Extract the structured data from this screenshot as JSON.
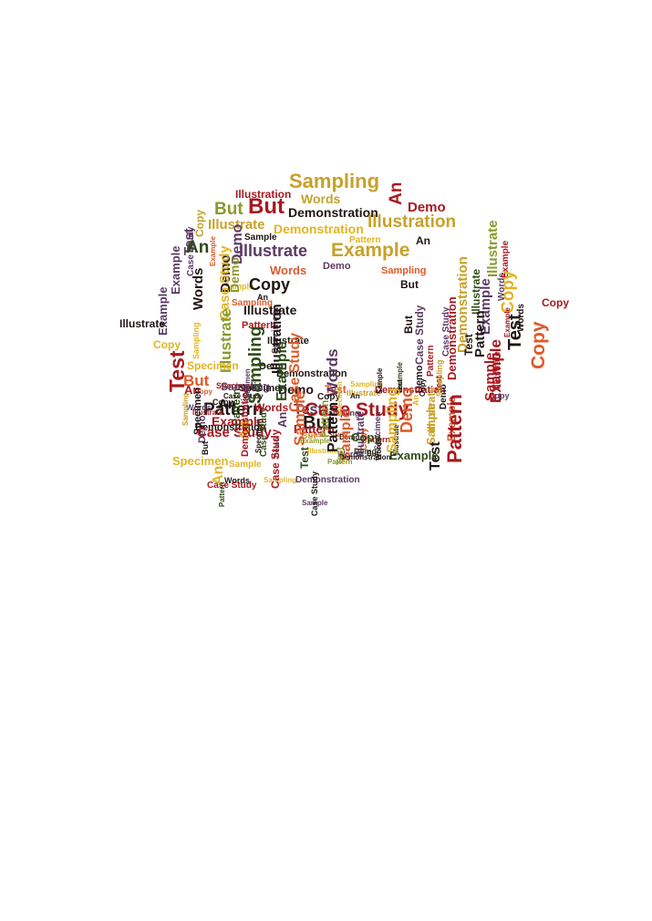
{
  "palette": {
    "crimson": "#a8181f",
    "orange": "#dd5a2a",
    "gold": "#c7a12a",
    "yellow": "#e2b423",
    "olive": "#8a9a2c",
    "green": "#2e4b17",
    "purple": "#5a3a63",
    "dark": "#1f1512"
  },
  "words": [
    {
      "text": "Sampling",
      "c": "gold"
    },
    {
      "text": "Illustration",
      "c": "crimson"
    },
    {
      "text": "Words",
      "c": "gold"
    },
    {
      "text": "An",
      "c": "crimson"
    },
    {
      "text": "But",
      "c": "olive"
    },
    {
      "text": "But",
      "c": "crimson"
    },
    {
      "text": "Demonstration",
      "c": "dark"
    },
    {
      "text": "Demo",
      "c": "crimson"
    },
    {
      "text": "Copy",
      "c": "gold"
    },
    {
      "text": "Illustrate",
      "c": "gold"
    },
    {
      "text": "Demonstration",
      "c": "yellow"
    },
    {
      "text": "Illustration",
      "c": "gold"
    },
    {
      "text": "Sample",
      "c": "dark"
    },
    {
      "text": "An",
      "c": "dark"
    },
    {
      "text": "Pattern",
      "c": "yellow"
    },
    {
      "text": "Test",
      "c": "purple"
    },
    {
      "text": "Example",
      "c": "purple"
    },
    {
      "text": "Case Study",
      "c": "purple"
    },
    {
      "text": "An",
      "c": "green"
    },
    {
      "text": "Demo",
      "c": "purple"
    },
    {
      "text": "Example",
      "c": "orange"
    },
    {
      "text": "Illustrate",
      "c": "purple"
    },
    {
      "text": "Example",
      "c": "gold"
    },
    {
      "text": "Illustrate",
      "c": "olive"
    },
    {
      "text": "Sample",
      "c": "yellow"
    },
    {
      "text": "Demo",
      "c": "dark"
    },
    {
      "text": "Demo",
      "c": "olive"
    },
    {
      "text": "Example",
      "c": "purple"
    },
    {
      "text": "Words",
      "c": "orange"
    },
    {
      "text": "Demo",
      "c": "purple"
    },
    {
      "text": "Sampling",
      "c": "orange"
    },
    {
      "text": "Demonstration",
      "c": "gold"
    },
    {
      "text": "Example",
      "c": "purple"
    },
    {
      "text": "Words",
      "c": "dark"
    },
    {
      "text": "Copy",
      "c": "dark"
    },
    {
      "text": "An",
      "c": "dark"
    },
    {
      "text": "But",
      "c": "dark"
    },
    {
      "text": "Illustrate",
      "c": "green"
    },
    {
      "text": "Words",
      "c": "purple"
    },
    {
      "text": "Case Study",
      "c": "yellow"
    },
    {
      "text": "Sampling",
      "c": "orange"
    },
    {
      "text": "Illustrate",
      "c": "dark"
    },
    {
      "text": "Example",
      "c": "crimson"
    },
    {
      "text": "Case Study",
      "c": "purple"
    },
    {
      "text": "Copy",
      "c": "yellow"
    },
    {
      "text": "Pattern",
      "c": "crimson"
    },
    {
      "text": "Sampling",
      "c": "yellow"
    },
    {
      "text": "Illustrate",
      "c": "olive"
    },
    {
      "text": "Specimen",
      "c": "purple"
    },
    {
      "text": "Example",
      "c": "crimson"
    },
    {
      "text": "Words",
      "c": "dark"
    },
    {
      "text": "But",
      "c": "dark"
    },
    {
      "text": "Test",
      "c": "dark"
    },
    {
      "text": "Copy",
      "c": "orange"
    },
    {
      "text": "Illustrate",
      "c": "dark"
    },
    {
      "text": "Test",
      "c": "dark"
    },
    {
      "text": "Pattern",
      "c": "crimson"
    },
    {
      "text": "Demonstration",
      "c": "crimson"
    },
    {
      "text": "Case Study",
      "c": "purple"
    },
    {
      "text": "Test",
      "c": "crimson"
    },
    {
      "text": "An",
      "c": "crimson"
    },
    {
      "text": "Specimen",
      "c": "crimson"
    },
    {
      "text": "Illustration",
      "c": "dark"
    },
    {
      "text": "Demo",
      "c": "dark"
    },
    {
      "text": "But",
      "c": "orange"
    },
    {
      "text": "Demonstration",
      "c": "dark"
    },
    {
      "text": "Copy",
      "c": "dark"
    },
    {
      "text": "Specimen",
      "c": "dark"
    },
    {
      "text": "Sampling",
      "c": "yellow"
    },
    {
      "text": "Test",
      "c": "orange"
    },
    {
      "text": "Words",
      "c": "purple"
    },
    {
      "text": "Example",
      "c": "crimson"
    },
    {
      "text": "Pattern",
      "c": "dark"
    },
    {
      "text": "Demo",
      "c": "dark"
    },
    {
      "text": "Case Study",
      "c": "dark"
    },
    {
      "text": "Copy",
      "c": "orange"
    },
    {
      "text": "Illustrate",
      "c": "gold"
    },
    {
      "text": "Sampling",
      "c": "green"
    },
    {
      "text": "An",
      "c": "dark"
    },
    {
      "text": "Example",
      "c": "green"
    },
    {
      "text": "Demo",
      "c": "dark"
    },
    {
      "text": "Copy",
      "c": "purple"
    },
    {
      "text": "Illustrate",
      "c": "crimson"
    },
    {
      "text": "Pattern",
      "c": "dark"
    },
    {
      "text": "Specimen",
      "c": "purple"
    },
    {
      "text": "Test",
      "c": "purple"
    },
    {
      "text": "Sample",
      "c": "crimson"
    },
    {
      "text": "Illustrate",
      "c": "crimson"
    },
    {
      "text": "Sampling",
      "c": "purple"
    },
    {
      "text": "Demonstration",
      "c": "crimson"
    },
    {
      "text": "Words",
      "c": "purple"
    },
    {
      "text": "Case Study",
      "c": "orange"
    },
    {
      "text": "But",
      "c": "gold"
    },
    {
      "text": "Copy",
      "c": "dark"
    },
    {
      "text": "An",
      "c": "dark"
    },
    {
      "text": "Demo",
      "c": "dark"
    },
    {
      "text": "Sampling",
      "c": "gold"
    },
    {
      "text": "Case Study",
      "c": "orange"
    },
    {
      "text": "Example",
      "c": "green"
    },
    {
      "text": "Test",
      "c": "dark"
    },
    {
      "text": "Sample",
      "c": "dark"
    },
    {
      "text": "Copy",
      "c": "dark"
    },
    {
      "text": "Demo",
      "c": "dark"
    },
    {
      "text": "Test",
      "c": "crimson"
    },
    {
      "text": "Sampling",
      "c": "gold"
    },
    {
      "text": "An",
      "c": "yellow"
    },
    {
      "text": "Example",
      "c": "orange"
    },
    {
      "text": "Illustrate",
      "c": "gold"
    },
    {
      "text": "Sample",
      "c": "gold"
    },
    {
      "text": "Pattern",
      "c": "crimson"
    },
    {
      "text": "Test",
      "c": "dark"
    },
    {
      "text": "Case Study",
      "c": "crimson"
    },
    {
      "text": "But",
      "c": "dark"
    },
    {
      "text": "Words",
      "c": "purple"
    },
    {
      "text": "Demo",
      "c": "purple"
    },
    {
      "text": "Pattern",
      "c": "crimson"
    },
    {
      "text": "Demonstration",
      "c": "dark"
    },
    {
      "text": "Pattern",
      "c": "crimson"
    },
    {
      "text": "Pattern",
      "c": "green"
    },
    {
      "text": "Specimen",
      "c": "dark"
    },
    {
      "text": "Specimen",
      "c": "yellow"
    },
    {
      "text": "Example",
      "c": "olive"
    },
    {
      "text": "Case Study",
      "c": "crimson"
    },
    {
      "text": "Example",
      "c": "crimson"
    },
    {
      "text": "Specimen",
      "c": "dark"
    },
    {
      "text": "Pattern",
      "c": "olive"
    },
    {
      "text": "Illustrate",
      "c": "yellow"
    },
    {
      "text": "Demo",
      "c": "orange"
    },
    {
      "text": "An",
      "c": "yellow"
    },
    {
      "text": "Sample",
      "c": "orange"
    },
    {
      "text": "But",
      "c": "dark"
    },
    {
      "text": "Pattern",
      "c": "olive"
    },
    {
      "text": "Demo",
      "c": "green"
    },
    {
      "text": "But",
      "c": "dark"
    },
    {
      "text": "Illustrate",
      "c": "dark"
    },
    {
      "text": "Copy",
      "c": "orange"
    },
    {
      "text": "Specimen",
      "c": "purple"
    },
    {
      "text": "Example",
      "c": "green"
    },
    {
      "text": "Pattern",
      "c": "dark"
    },
    {
      "text": "Sampling",
      "c": "yellow"
    },
    {
      "text": "Sample",
      "c": "orange"
    },
    {
      "text": "Demonstration",
      "c": "dark"
    },
    {
      "text": "Test",
      "c": "olive"
    },
    {
      "text": "Words",
      "c": "dark"
    },
    {
      "text": "Illustrate",
      "c": "purple"
    },
    {
      "text": "Case Study",
      "c": "green"
    },
    {
      "text": "Copy",
      "c": "green"
    },
    {
      "text": "An",
      "c": "purple"
    },
    {
      "text": "Specimen",
      "c": "yellow"
    },
    {
      "text": "Demo",
      "c": "purple"
    },
    {
      "text": "Demonstration",
      "c": "crimson"
    },
    {
      "text": "Sample",
      "c": "yellow"
    },
    {
      "text": "Test",
      "c": "green"
    },
    {
      "text": "Words",
      "c": "dark"
    },
    {
      "text": "Sampling",
      "c": "yellow"
    },
    {
      "text": "Case Study",
      "c": "crimson"
    },
    {
      "text": "Demonstration",
      "c": "purple"
    },
    {
      "text": "An",
      "c": "yellow"
    },
    {
      "text": "Case Study",
      "c": "crimson"
    },
    {
      "text": "Sample",
      "c": "purple"
    },
    {
      "text": "Case Study",
      "c": "dark"
    },
    {
      "text": "Pattern",
      "c": "green"
    },
    {
      "text": "Copy",
      "c": "crimson"
    },
    {
      "text": "Illustrate",
      "c": "dark"
    },
    {
      "text": "Copy",
      "c": "yellow"
    },
    {
      "text": "Specimen",
      "c": "yellow"
    },
    {
      "text": "Sampling",
      "c": "purple"
    },
    {
      "text": "Words",
      "c": "crimson"
    }
  ]
}
